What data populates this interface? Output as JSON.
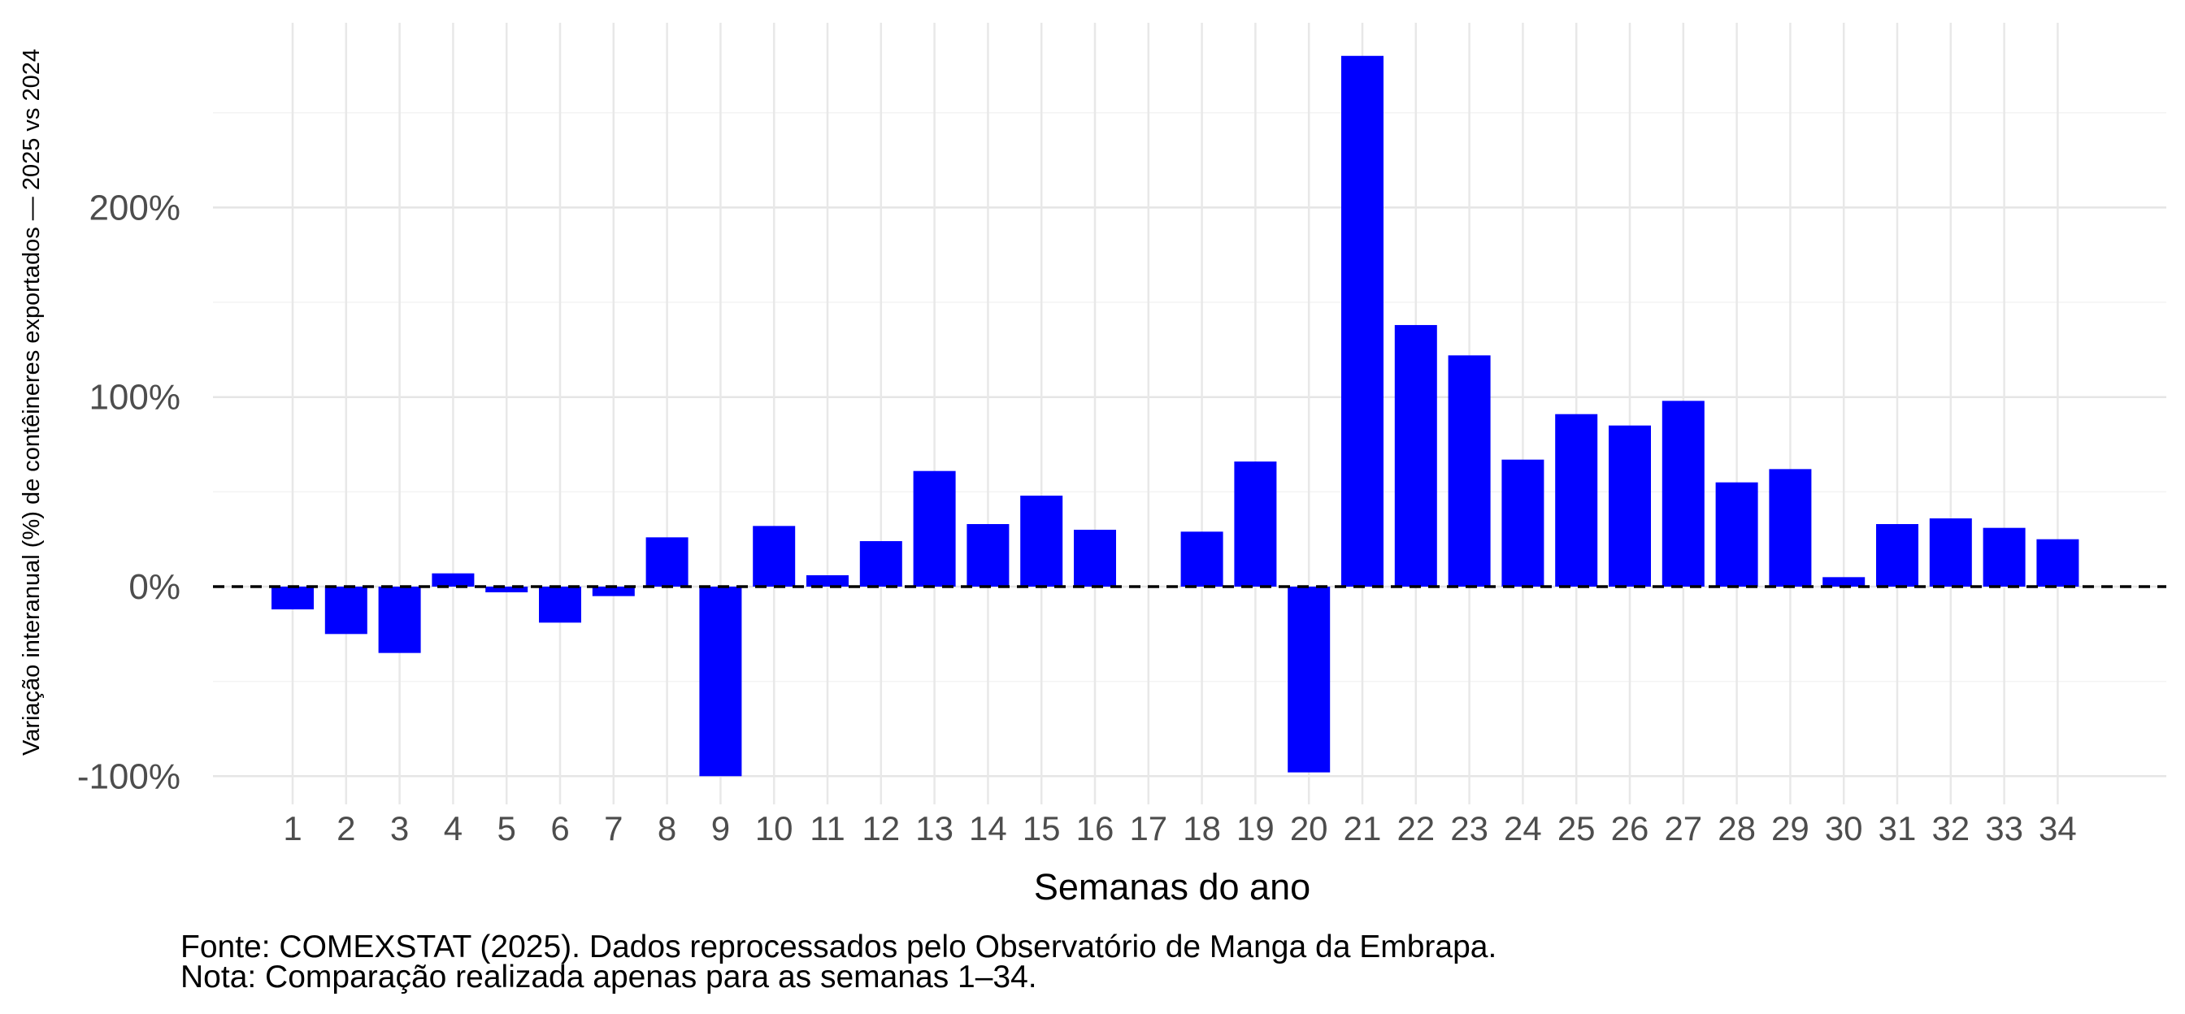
{
  "chart_data": {
    "type": "bar",
    "title": "",
    "xlabel": "Semanas do ano",
    "ylabel": "Variação interanual (%) de contêineres exportados — 2025 vs 2024",
    "categories": [
      "1",
      "2",
      "3",
      "4",
      "5",
      "6",
      "7",
      "8",
      "9",
      "10",
      "11",
      "12",
      "13",
      "14",
      "15",
      "16",
      "17",
      "18",
      "19",
      "20",
      "21",
      "22",
      "23",
      "24",
      "25",
      "26",
      "27",
      "28",
      "29",
      "30",
      "31",
      "32",
      "33",
      "34"
    ],
    "values": [
      -12,
      -25,
      -35,
      7,
      -3,
      -19,
      -5,
      26,
      -100,
      32,
      6,
      24,
      61,
      33,
      48,
      30,
      0,
      29,
      66,
      -98,
      280,
      138,
      122,
      67,
      91,
      85,
      98,
      55,
      62,
      5,
      33,
      36,
      31,
      25
    ],
    "ylim": [
      -112,
      298
    ],
    "yticks": [
      -100,
      0,
      100,
      200
    ],
    "ytick_labels": [
      "-100%",
      "0%",
      "100%",
      "200%"
    ],
    "reference_line": 0,
    "bar_color": "#0000ff",
    "grid": true
  },
  "captions": {
    "source": "Fonte: COMEXSTAT (2025). Dados reprocessados pelo Observatório de Manga da Embrapa.",
    "note": "Nota: Comparação realizada apenas para as semanas 1–34."
  }
}
